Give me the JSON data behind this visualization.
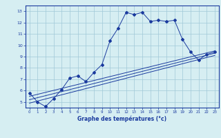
{
  "title": "",
  "xlabel": "Graphe des températures (°c)",
  "ylabel": "",
  "bg_color": "#d6eef2",
  "line_color": "#1a3a9e",
  "grid_color": "#a0c8d8",
  "axis_color": "#1a3a9e",
  "xlim": [
    -0.5,
    23.5
  ],
  "ylim": [
    4.5,
    13.5
  ],
  "xticks": [
    0,
    1,
    2,
    3,
    4,
    5,
    6,
    7,
    8,
    9,
    10,
    11,
    12,
    13,
    14,
    15,
    16,
    17,
    18,
    19,
    20,
    21,
    22,
    23
  ],
  "yticks": [
    5,
    6,
    7,
    8,
    9,
    10,
    11,
    12,
    13
  ],
  "line1_x": [
    0,
    1,
    2,
    3,
    4,
    5,
    6,
    7,
    8,
    9,
    10,
    11,
    12,
    13,
    14,
    15,
    16,
    17,
    18,
    19,
    20,
    21,
    22,
    23
  ],
  "line1_y": [
    5.8,
    5.0,
    4.6,
    5.3,
    6.1,
    7.1,
    7.3,
    6.8,
    7.6,
    8.3,
    10.4,
    11.5,
    12.9,
    12.7,
    12.9,
    12.1,
    12.2,
    12.1,
    12.2,
    10.5,
    9.4,
    8.7,
    9.2,
    9.4
  ],
  "line2_x": [
    0,
    23
  ],
  "line2_y": [
    5.5,
    9.5
  ],
  "line3_x": [
    0,
    23
  ],
  "line3_y": [
    5.2,
    9.3
  ],
  "line4_x": [
    0,
    23
  ],
  "line4_y": [
    4.9,
    9.1
  ]
}
